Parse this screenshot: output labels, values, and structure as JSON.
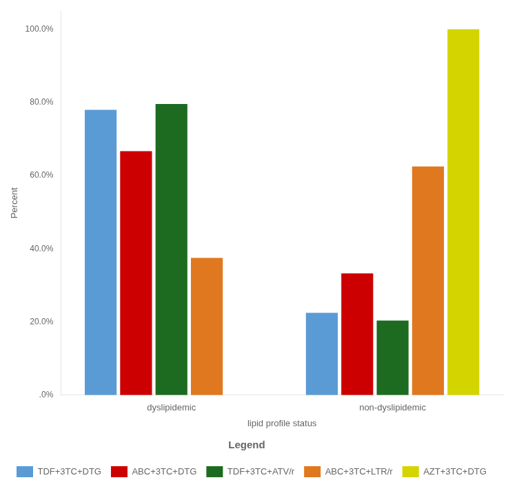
{
  "chart_data": {
    "type": "bar",
    "categories": [
      "dyslipidemic",
      "non-dyslipidemic"
    ],
    "series": [
      {
        "name": "TDF+3TC+DTG",
        "color": "#5B9BD5",
        "values": [
          78.0,
          22.5
        ]
      },
      {
        "name": "ABC+3TC+DTG",
        "color": "#CC0000",
        "values": [
          66.7,
          33.3
        ]
      },
      {
        "name": "TDF+3TC+ATV/r",
        "color": "#1D6B20",
        "values": [
          79.6,
          20.4
        ]
      },
      {
        "name": "ABC+3TC+LTR/r",
        "color": "#E07820",
        "values": [
          37.5,
          62.5
        ]
      },
      {
        "name": "AZT+3TC+DTG",
        "color": "#D4D400",
        "values": [
          0.0,
          100.0
        ]
      }
    ],
    "xlabel": "lipid profile status",
    "ylabel": "Percent",
    "ylim": [
      0,
      105
    ],
    "yticks": [
      {
        "value": 0.0,
        "label": ".0%"
      },
      {
        "value": 20.0,
        "label": "20.0%"
      },
      {
        "value": 40.0,
        "label": "40.0%"
      },
      {
        "value": 60.0,
        "label": "60.0%"
      },
      {
        "value": 80.0,
        "label": "80.0%"
      },
      {
        "value": 100.0,
        "label": "100.0%"
      }
    ],
    "legend_title": "Legend",
    "legend": "bottom",
    "grid": false
  }
}
